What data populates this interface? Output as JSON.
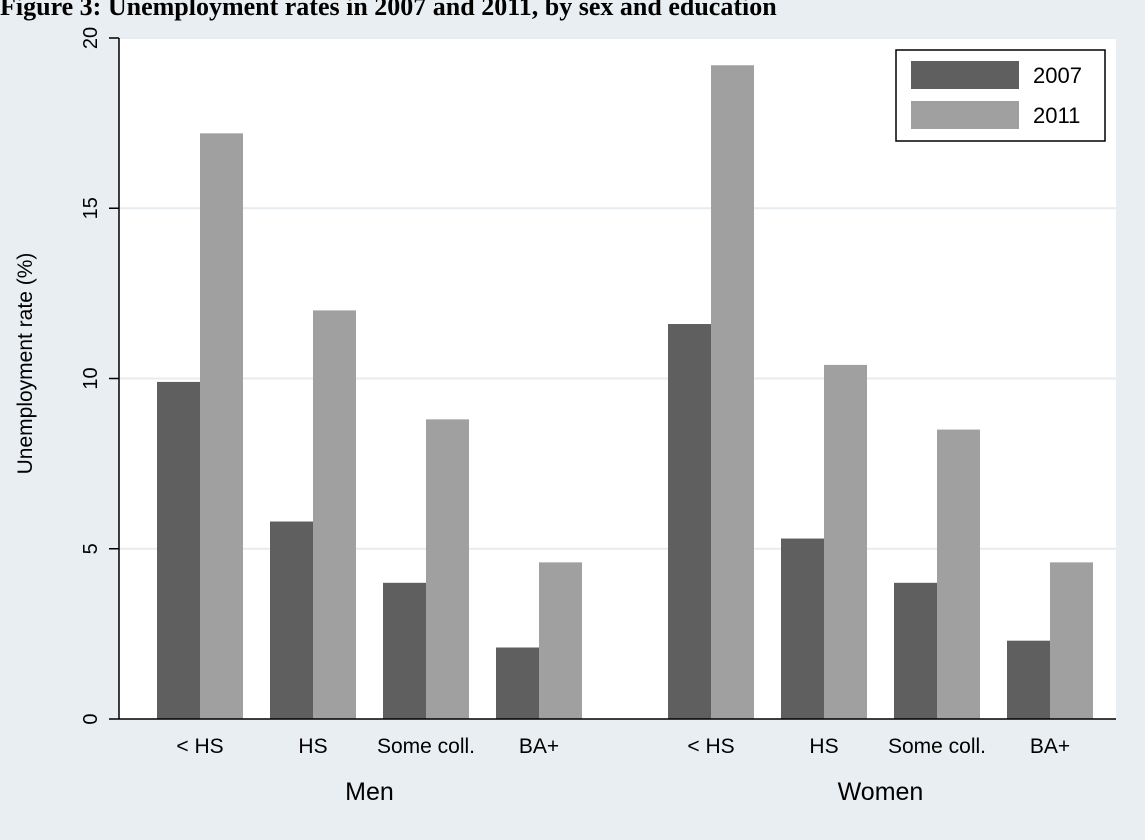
{
  "caption": "Figure 3: Unemployment rates in 2007 and 2011, by sex and education",
  "colors": {
    "background": "#e9eef2",
    "plot_area": "#ffffff",
    "gridline": "#e6ecef",
    "series_2007": "#5f5f5f",
    "series_2011": "#a0a0a0",
    "axis": "#000000"
  },
  "chart_data": {
    "type": "bar",
    "title": "",
    "ylabel": "Unemployment rate (%)",
    "ylim": [
      0,
      20
    ],
    "yticks": [
      0,
      5,
      10,
      15,
      20
    ],
    "grid": true,
    "legend_position": "top-right",
    "groups": [
      {
        "label": "Men",
        "categories": [
          "< HS",
          "HS",
          "Some coll.",
          "BA+"
        ]
      },
      {
        "label": "Women",
        "categories": [
          "< HS",
          "HS",
          "Some coll.",
          "BA+"
        ]
      }
    ],
    "series": [
      {
        "name": "2007",
        "values": [
          [
            9.9,
            5.8,
            4.0,
            2.1
          ],
          [
            11.6,
            5.3,
            4.0,
            2.3
          ]
        ]
      },
      {
        "name": "2011",
        "values": [
          [
            17.2,
            12.0,
            8.8,
            4.6
          ],
          [
            19.2,
            10.4,
            8.5,
            4.6
          ]
        ]
      }
    ]
  }
}
